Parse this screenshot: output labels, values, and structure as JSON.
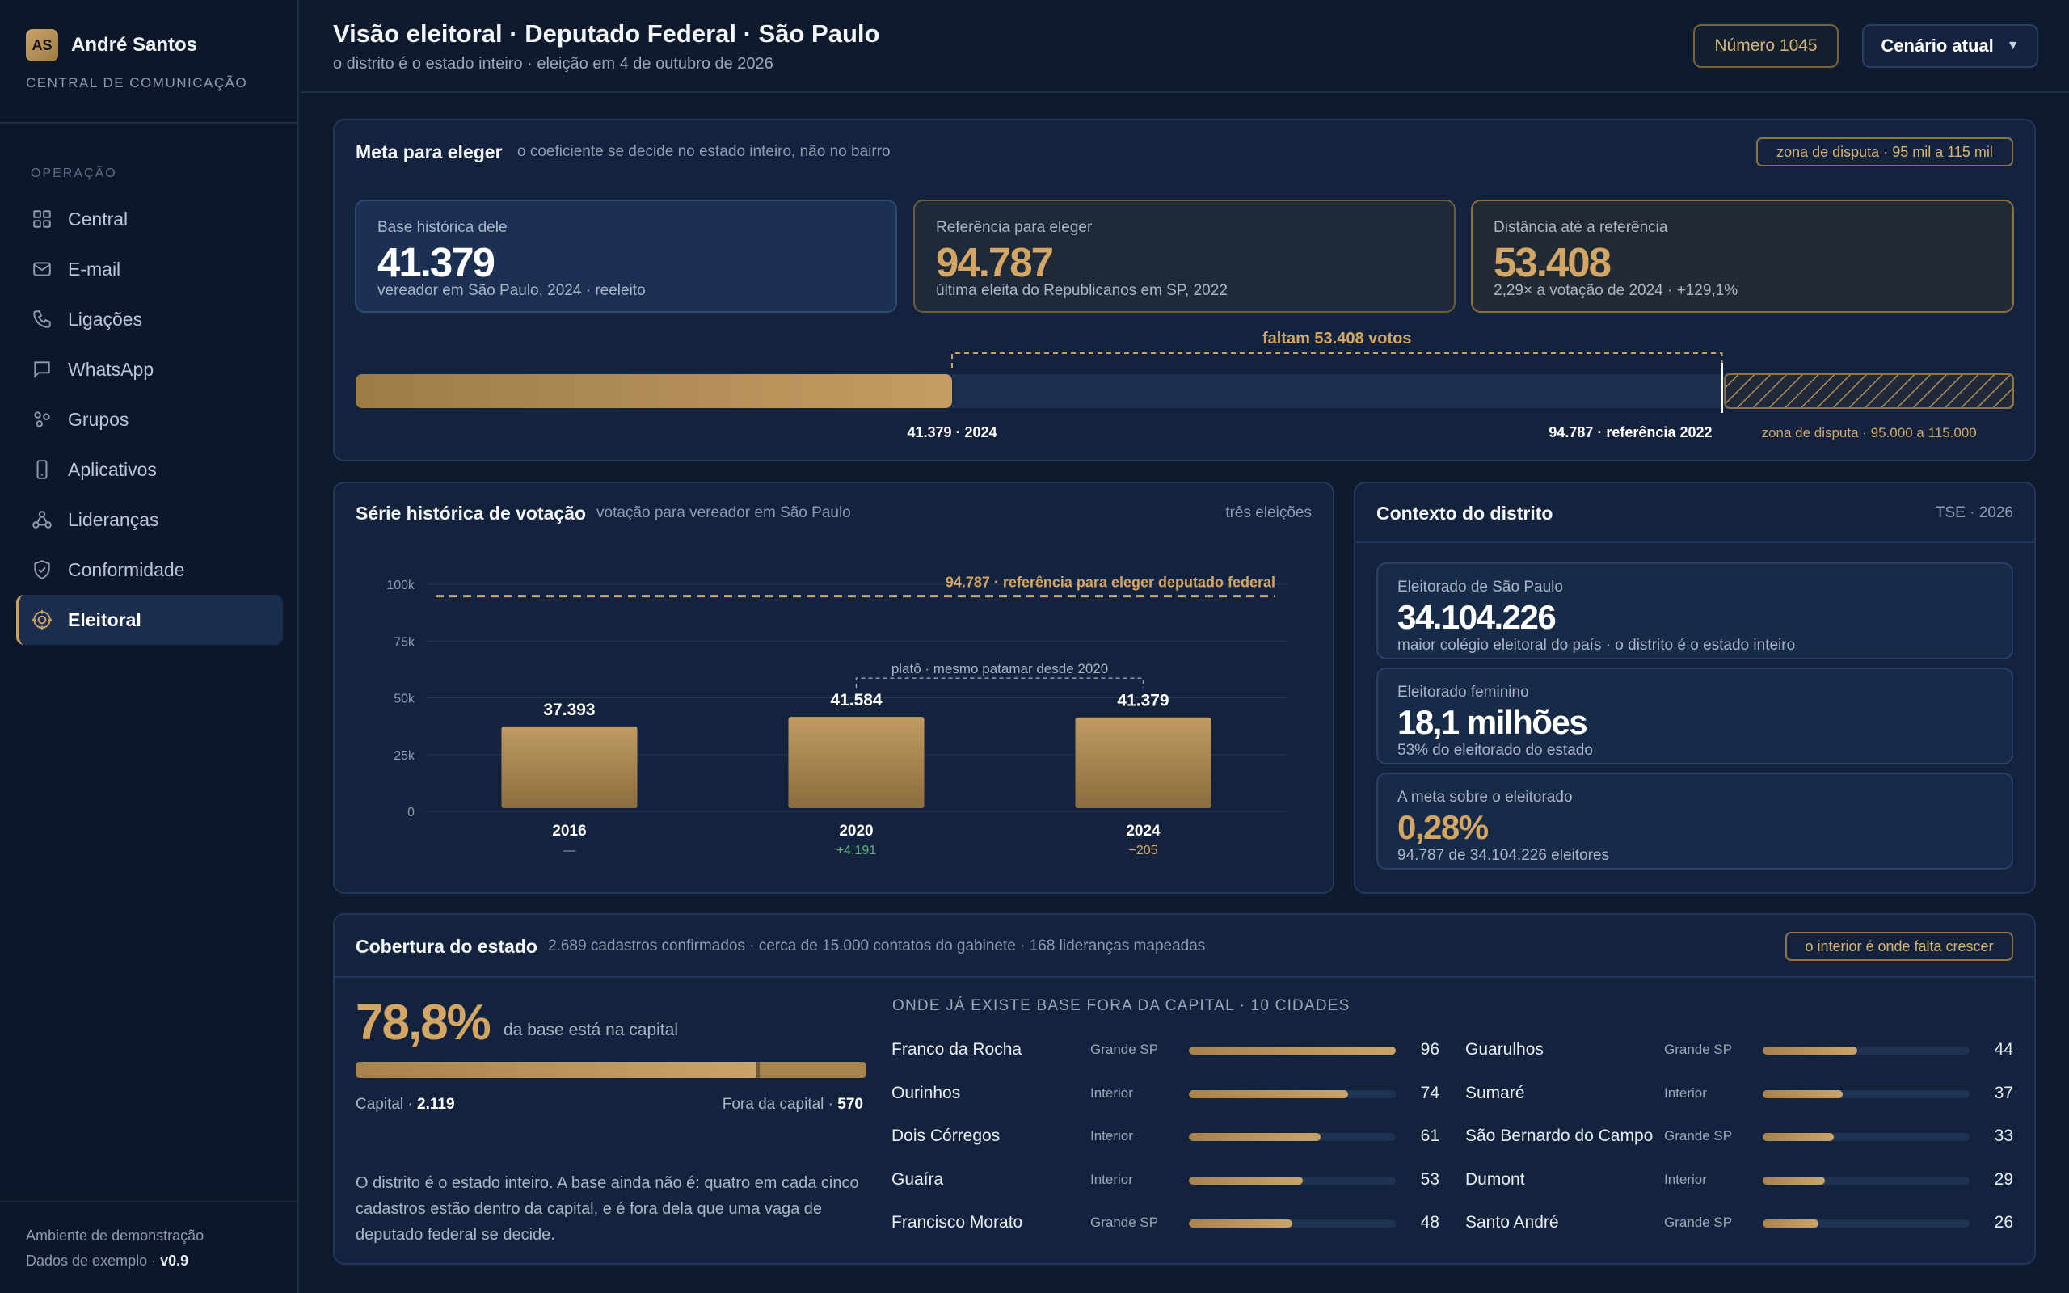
{
  "sidebar": {
    "initials": "AS",
    "user_name": "André Santos",
    "subtitle": "CENTRAL DE COMUNICAÇÃO",
    "section": "OPERAÇÃO",
    "items": [
      {
        "label": "Central",
        "icon": "grid-icon"
      },
      {
        "label": "E-mail",
        "icon": "mail-icon"
      },
      {
        "label": "Ligações",
        "icon": "phone-icon"
      },
      {
        "label": "WhatsApp",
        "icon": "chat-icon"
      },
      {
        "label": "Grupos",
        "icon": "groups-icon"
      },
      {
        "label": "Aplicativos",
        "icon": "mobile-icon"
      },
      {
        "label": "Lideranças",
        "icon": "network-icon"
      },
      {
        "label": "Conformidade",
        "icon": "shield-icon"
      },
      {
        "label": "Eleitoral",
        "icon": "target-icon",
        "active": true
      }
    ],
    "footer_line1": "Ambiente de demonstração",
    "footer_line2": "Dados de exemplo · ",
    "footer_version": "v0.9"
  },
  "header": {
    "title": "Visão eleitoral · Deputado Federal · São Paulo",
    "subtitle": "o distrito é o estado inteiro · eleição em 4 de outubro de 2026",
    "number_button": "Número 1045",
    "scenario_button": "Cenário atual",
    "scenario_caret": "▼"
  },
  "goal": {
    "title": "Meta para eleger",
    "subtitle": "o coeficiente se decide no estado inteiro, não no bairro",
    "pill": "zona de disputa · 95 mil a 115 mil",
    "stats": [
      {
        "label": "Base histórica dele",
        "value": "41.379",
        "note": "vereador em São Paulo, 2024 · reeleito"
      },
      {
        "label": "Referência para eleger",
        "value": "94.787",
        "note": "última eleita do Republicanos em SP, 2022"
      },
      {
        "label": "Distância até a referência",
        "value": "53.408",
        "note": "2,29× a votação de 2024 · +129,1%"
      }
    ],
    "progress": {
      "current": 41379,
      "reference": 94787,
      "zone_min": 95000,
      "zone_max": 115000,
      "gap_label": "faltam 53.408 votos",
      "current_label": "41.379 · 2024",
      "reference_label": "94.787 · referência 2022",
      "zone_label": "zona de disputa · 95.000 a 115.000"
    }
  },
  "history": {
    "title": "Série histórica de votação",
    "subtitle": "votação para vereador em São Paulo",
    "badge": "três eleições",
    "reference_line_label": "94.787 · referência para eleger deputado federal",
    "plateau_label": "platô · mesmo patamar desde 2020",
    "deltas": [
      "—",
      "+4.191",
      "−205"
    ],
    "value_labels": [
      "37.393",
      "41.584",
      "41.379"
    ]
  },
  "chart_data": {
    "type": "bar",
    "categories": [
      "2016",
      "2020",
      "2024"
    ],
    "values": [
      37393,
      41584,
      41379
    ],
    "reference": 94787,
    "ylim": [
      0,
      100000
    ],
    "yticks": [
      0,
      25000,
      50000,
      75000,
      100000
    ],
    "ytick_labels": [
      "0",
      "25k",
      "50k",
      "75k",
      "100k"
    ],
    "grid": true,
    "colors": {
      "bar_top": "#c09b62",
      "bar_bottom": "#8c6d3e",
      "reference": "#d4a666"
    }
  },
  "context": {
    "title": "Contexto do distrito",
    "badge": "TSE · 2026",
    "cards": [
      {
        "label": "Eleitorado de São Paulo",
        "value": "34.104.226",
        "note": "maior colégio eleitoral do país · o distrito é o estado inteiro"
      },
      {
        "label": "Eleitorado feminino",
        "value": "18,1 milhões",
        "note": "53% do eleitorado do estado"
      },
      {
        "label": "A meta sobre o eleitorado",
        "value": "0,28%",
        "note": "94.787 de 34.104.226 eleitores"
      }
    ]
  },
  "coverage": {
    "title": "Cobertura do estado",
    "subtitle": "2.689 cadastros confirmados · cerca de 15.000 contatos do gabinete · 168 lideranças mapeadas",
    "pill": "o interior é onde falta crescer",
    "percent": "78,8%",
    "percent_note": "da base está na capital",
    "capital_share": 0.788,
    "capital_label": "Capital · ",
    "capital_value": "2.119",
    "outside_label": "Fora da capital · ",
    "outside_value": "570",
    "paragraph": "O distrito é o estado inteiro. A base ainda não é: quatro em cada cinco cadastros estão dentro da capital, e é fora dela que uma vaga de deputado federal se decide.",
    "cities_title": "ONDE JÁ EXISTE BASE FORA DA CAPITAL · 10 CIDADES",
    "cities_max": 96,
    "cities": [
      {
        "name": "Franco da Rocha",
        "region": "Grande SP",
        "count": 96
      },
      {
        "name": "Ourinhos",
        "region": "Interior",
        "count": 74
      },
      {
        "name": "Dois Córregos",
        "region": "Interior",
        "count": 61
      },
      {
        "name": "Guaíra",
        "region": "Interior",
        "count": 53
      },
      {
        "name": "Francisco Morato",
        "region": "Grande SP",
        "count": 48
      },
      {
        "name": "Guarulhos",
        "region": "Grande SP",
        "count": 44
      },
      {
        "name": "Sumaré",
        "region": "Interior",
        "count": 37
      },
      {
        "name": "São Bernardo do Campo",
        "region": "Grande SP",
        "count": 33
      },
      {
        "name": "Dumont",
        "region": "Interior",
        "count": 29
      },
      {
        "name": "Santo André",
        "region": "Grande SP",
        "count": 26
      }
    ]
  }
}
